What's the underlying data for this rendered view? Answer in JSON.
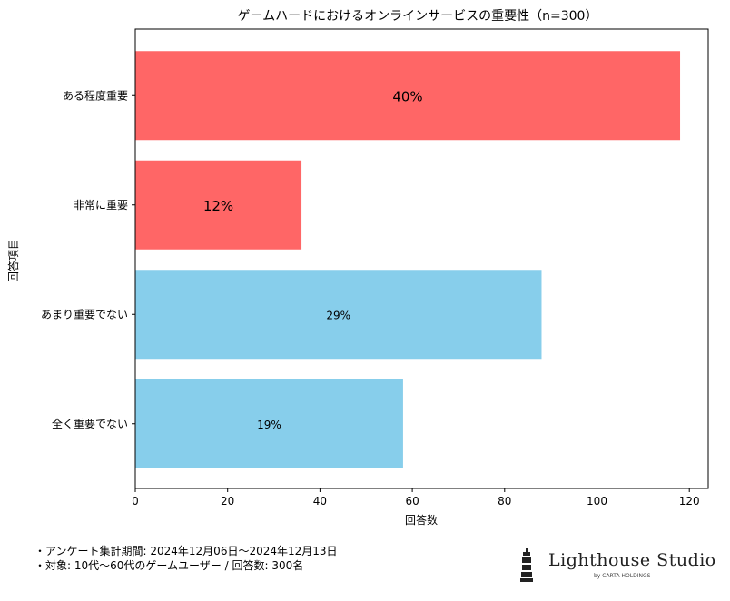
{
  "chart_data": {
    "type": "bar",
    "orientation": "horizontal",
    "title": "ゲームハードにおけるオンラインサービスの重要性（n=300）",
    "xlabel": "回答数",
    "ylabel": "回答項目",
    "categories": [
      "全く重要でない",
      "あまり重要でない",
      "非常に重要",
      "ある程度重要"
    ],
    "values": [
      58,
      88,
      36,
      118
    ],
    "labels": [
      "19%",
      "29%",
      "12%",
      "40%"
    ],
    "label_styles": [
      "small",
      "small",
      "large",
      "large"
    ],
    "colors": [
      "#87ceeb",
      "#87ceeb",
      "#ff6666",
      "#ff6666"
    ],
    "xlim": [
      0,
      124
    ],
    "xticks": [
      0,
      20,
      40,
      60,
      80,
      100,
      120
    ],
    "grid": false,
    "legend": "none"
  },
  "footer": {
    "note_1": "・アンケート集計期間: 2024年12月06日〜2024年12月13日",
    "note_2": "・対象: 10代〜60代のゲームユーザー / 回答数: 300名"
  },
  "logo": {
    "name": "Lighthouse Studio",
    "sub": "by CARTA HOLDINGS",
    "icon": "lighthouse-icon"
  }
}
